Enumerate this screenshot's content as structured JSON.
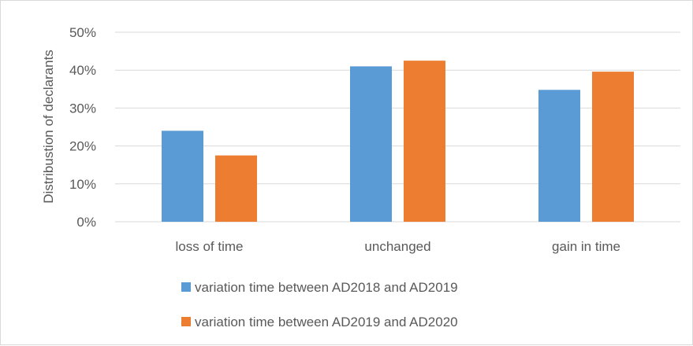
{
  "chart_data": {
    "type": "bar",
    "categories": [
      "loss of time",
      "unchanged",
      "gain in time"
    ],
    "series": [
      {
        "name": "variation time between AD2018 and AD2019",
        "color": "#5B9BD5",
        "values": [
          24,
          41,
          34.8
        ]
      },
      {
        "name": "variation time between AD2019 and AD2020",
        "color": "#ED7D31",
        "values": [
          17.5,
          42.5,
          39.6
        ]
      }
    ],
    "title": "",
    "xlabel": "",
    "ylabel": "Distribustion of declarants",
    "ylim": [
      0,
      50
    ],
    "yticks": [
      0,
      10,
      20,
      30,
      40,
      50
    ],
    "ytick_labels": [
      "0%",
      "10%",
      "20%",
      "30%",
      "40%",
      "50%"
    ],
    "grid": true,
    "gridline_color": "#d9d9d9",
    "legend_position": "bottom"
  }
}
